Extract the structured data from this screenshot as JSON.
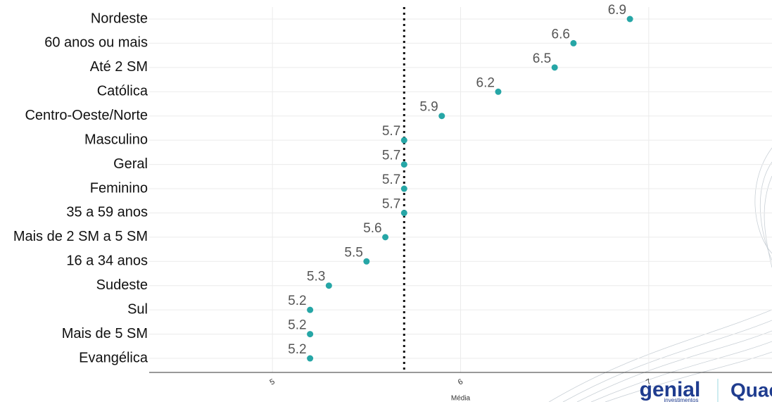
{
  "chart_data": {
    "type": "dot",
    "categories": [
      "Nordeste",
      "60 anos ou mais",
      "Até 2 SM",
      "Católica",
      "Centro-Oeste/Norte",
      "Masculino",
      "Geral",
      "Feminino",
      "35 a 59 anos",
      "Mais de 2 SM a 5 SM",
      "16 a 34 anos",
      "Sudeste",
      "Sul",
      "Mais de 5 SM",
      "Evangélica"
    ],
    "values": [
      6.9,
      6.6,
      6.5,
      6.2,
      5.9,
      5.7,
      5.7,
      5.7,
      5.7,
      5.6,
      5.5,
      5.3,
      5.2,
      5.2,
      5.2
    ],
    "color": "#26a6a6",
    "xlim": [
      4.345,
      7.655
    ],
    "xticks": [
      5,
      6,
      7
    ],
    "xlabel": "Média",
    "reference_line": 5.7,
    "grid": true,
    "logos": [
      "genial",
      "investimentos",
      "Quaest"
    ]
  }
}
